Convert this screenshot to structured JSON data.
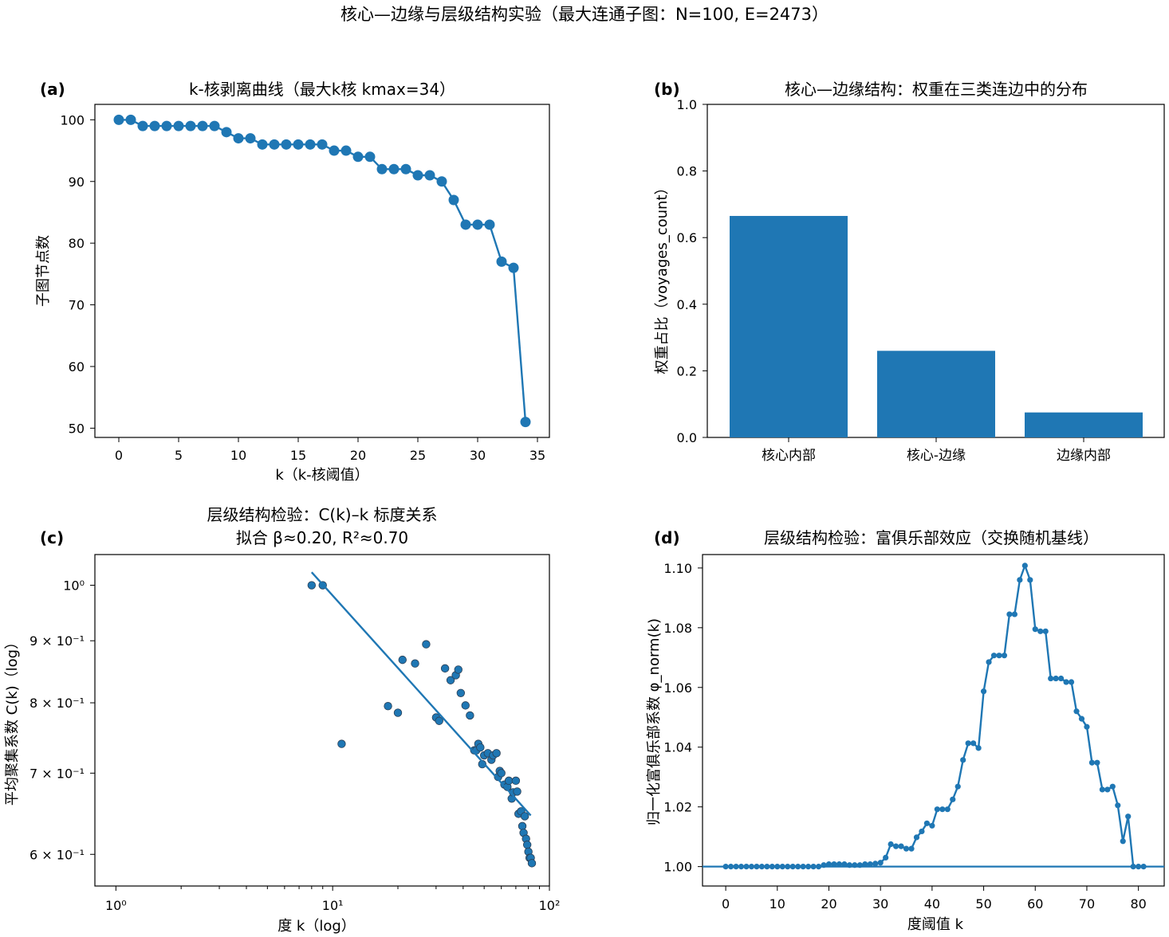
{
  "suptitle": "核心—边缘与层级结构实验（最大连通子图：N=100, E=2473）",
  "chart_data": [
    {
      "panel": "(a)",
      "type": "line",
      "title": "k-核剥离曲线（最大k核 kmax=34）",
      "xlabel": "k（k-核阈值）",
      "ylabel": "子图节点数",
      "xlim": [
        -2,
        36
      ],
      "ylim": [
        48.5,
        102.5
      ],
      "xticks": [
        0,
        5,
        10,
        15,
        20,
        25,
        30,
        35
      ],
      "yticks": [
        50,
        60,
        70,
        80,
        90,
        100
      ],
      "color": "#1f77b4",
      "x": [
        0,
        1,
        2,
        3,
        4,
        5,
        6,
        7,
        8,
        9,
        10,
        11,
        12,
        13,
        14,
        15,
        16,
        17,
        18,
        19,
        20,
        21,
        22,
        23,
        24,
        25,
        26,
        27,
        28,
        29,
        30,
        31,
        32,
        33,
        34
      ],
      "y": [
        100,
        100,
        99,
        99,
        99,
        99,
        99,
        99,
        99,
        98,
        97,
        97,
        96,
        96,
        96,
        96,
        96,
        96,
        95,
        95,
        94,
        94,
        92,
        92,
        92,
        91,
        91,
        90,
        87,
        83,
        83,
        83,
        77,
        76,
        51
      ]
    },
    {
      "panel": "(b)",
      "type": "bar",
      "title": "核心—边缘结构：权重在三类连边中的分布",
      "xlabel": "",
      "ylabel": "权重占比（voyages_count）",
      "categories": [
        "核心内部",
        "核心-边缘",
        "边缘内部"
      ],
      "values": [
        0.665,
        0.26,
        0.075
      ],
      "ylim": [
        0,
        1.0
      ],
      "yticks": [
        "0.0",
        "0.2",
        "0.4",
        "0.6",
        "0.8",
        "1.0"
      ],
      "color": "#1f77b4"
    },
    {
      "panel": "(c)",
      "type": "scatter",
      "title": "层级结构检验：C(k)–k 标度关系",
      "subtitle": "拟合 β≈0.20, R²≈0.70",
      "xlabel": "度 k（log）",
      "ylabel": "平均聚集系数 C(k)（log）",
      "xscale": "log",
      "yscale": "log",
      "xlim": [
        0.8,
        100
      ],
      "ylim": [
        0.565,
        1.06
      ],
      "xtick_labels": [
        "10⁰",
        "10¹",
        "10²"
      ],
      "ytick_labels": [
        "10⁰",
        "9 × 10⁻¹",
        "8 × 10⁻¹",
        "7 × 10⁻¹",
        "6 × 10⁻¹"
      ],
      "color": "#1f77b4",
      "points": [
        [
          8,
          1.0
        ],
        [
          9,
          1.0
        ],
        [
          11,
          0.74
        ],
        [
          18,
          0.795
        ],
        [
          20,
          0.785
        ],
        [
          21,
          0.868
        ],
        [
          24,
          0.862
        ],
        [
          27,
          0.894
        ],
        [
          30,
          0.778
        ],
        [
          31,
          0.773
        ],
        [
          33,
          0.854
        ],
        [
          35,
          0.835
        ],
        [
          37,
          0.843
        ],
        [
          38,
          0.852
        ],
        [
          39,
          0.815
        ],
        [
          41,
          0.796
        ],
        [
          43,
          0.781
        ],
        [
          45,
          0.731
        ],
        [
          46,
          0.731
        ],
        [
          47,
          0.74
        ],
        [
          48,
          0.735
        ],
        [
          49,
          0.712
        ],
        [
          50,
          0.724
        ],
        [
          52,
          0.727
        ],
        [
          54,
          0.718
        ],
        [
          55,
          0.724
        ],
        [
          57,
          0.727
        ],
        [
          58,
          0.695
        ],
        [
          59,
          0.703
        ],
        [
          60,
          0.7
        ],
        [
          62,
          0.685
        ],
        [
          64,
          0.682
        ],
        [
          65,
          0.69
        ],
        [
          67,
          0.667
        ],
        [
          68,
          0.675
        ],
        [
          70,
          0.69
        ],
        [
          71,
          0.676
        ],
        [
          72,
          0.648
        ],
        [
          74,
          0.651
        ],
        [
          75,
          0.633
        ],
        [
          76,
          0.625
        ],
        [
          77,
          0.645
        ],
        [
          78,
          0.618
        ],
        [
          79,
          0.611
        ],
        [
          80,
          0.603
        ],
        [
          81,
          0.596
        ],
        [
          82,
          0.596
        ],
        [
          83,
          0.59
        ]
      ],
      "fit_line": [
        [
          8,
          1.025
        ],
        [
          82,
          0.646
        ]
      ]
    },
    {
      "panel": "(d)",
      "type": "line",
      "title": "层级结构检验：富俱乐部效应（交换随机基线）",
      "xlabel": "度阈值 k",
      "ylabel": "归一化富俱乐部系数 φ_norm(k)",
      "xlim": [
        -4.5,
        85
      ],
      "ylim": [
        0.9935,
        1.1045
      ],
      "xticks": [
        0,
        10,
        20,
        30,
        40,
        50,
        60,
        70,
        80
      ],
      "yticks": [
        "1.00",
        "1.02",
        "1.04",
        "1.06",
        "1.08",
        "1.10"
      ],
      "hline": 1.0,
      "color": "#1f77b4",
      "x": [
        0,
        1,
        2,
        3,
        4,
        5,
        6,
        7,
        8,
        9,
        10,
        11,
        12,
        13,
        14,
        15,
        16,
        17,
        18,
        19,
        20,
        21,
        22,
        23,
        24,
        25,
        26,
        27,
        28,
        29,
        30,
        31,
        32,
        33,
        34,
        35,
        36,
        37,
        38,
        39,
        40,
        41,
        42,
        43,
        44,
        45,
        46,
        47,
        48,
        49,
        50,
        51,
        52,
        53,
        54,
        55,
        56,
        57,
        58,
        59,
        60,
        61,
        62,
        63,
        64,
        65,
        66,
        67,
        68,
        69,
        70,
        71,
        72,
        73,
        74,
        75,
        76,
        77,
        78,
        79,
        80,
        81
      ],
      "y": [
        1.0,
        1.0,
        1.0,
        1.0,
        1.0,
        1.0,
        1.0,
        1.0,
        1.0,
        1.0,
        1.0,
        1.0,
        1.0,
        1.0,
        1.0,
        1.0,
        1.0,
        1.0,
        1.0,
        1.0005,
        1.0008,
        1.0008,
        1.0008,
        1.0008,
        1.0005,
        1.0005,
        1.0005,
        1.0008,
        1.0008,
        1.001,
        1.0013,
        1.003,
        1.0075,
        1.0068,
        1.0068,
        1.006,
        1.006,
        1.0098,
        1.0118,
        1.0145,
        1.0137,
        1.0192,
        1.0192,
        1.0192,
        1.0225,
        1.0268,
        1.0357,
        1.0413,
        1.0413,
        1.0397,
        1.0587,
        1.0685,
        1.0707,
        1.0707,
        1.0707,
        1.0845,
        1.0845,
        1.096,
        1.1008,
        1.096,
        1.0795,
        1.0788,
        1.0788,
        1.063,
        1.063,
        1.063,
        1.0618,
        1.0618,
        1.052,
        1.0495,
        1.0468,
        1.0348,
        1.0348,
        1.0258,
        1.0258,
        1.0268,
        1.0205,
        1.0085,
        1.0168,
        1.0,
        1.0,
        1.0
      ]
    }
  ]
}
